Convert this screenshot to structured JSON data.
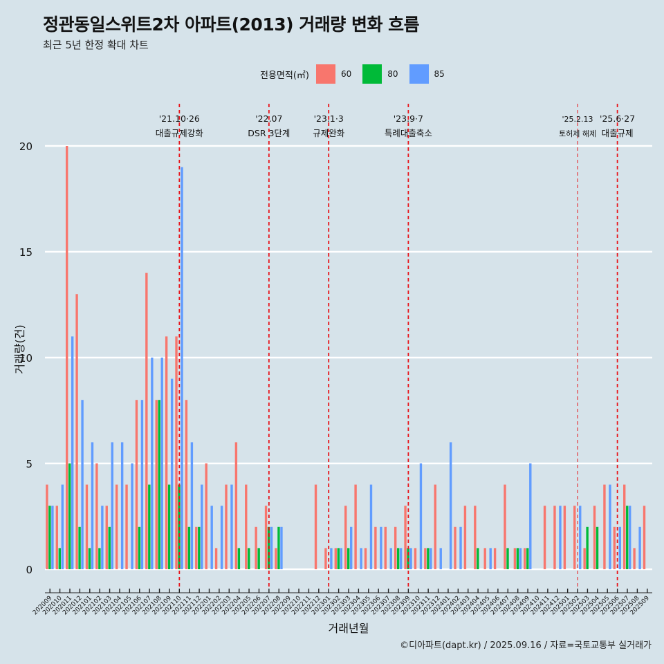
{
  "title": "정관동일스위트2차 아파트(2013) 거래량 변화 흐름",
  "subtitle": "최근 5년 한정 확대 차트",
  "caption": "©디아파트(dapt.kr) / 2025.09.16 / 자료=국토교통부 실거래가",
  "legend": {
    "title": "전용면적(㎡)",
    "items": [
      {
        "label": "60",
        "color": "#f8766d"
      },
      {
        "label": "80",
        "color": "#00ba38"
      },
      {
        "label": "85",
        "color": "#619cff"
      }
    ]
  },
  "chart_data": {
    "type": "bar",
    "xlabel": "거래년월",
    "ylabel": "거래량(건)",
    "ylim": [
      0,
      20
    ],
    "yticks": [
      0,
      5,
      10,
      15,
      20
    ],
    "grid": true,
    "legend_position": "top",
    "categories": [
      "202009",
      "202010",
      "202011",
      "202012",
      "202101",
      "202102",
      "202103",
      "202104",
      "202105",
      "202106",
      "202107",
      "202108",
      "202109",
      "202110",
      "202111",
      "202112",
      "202201",
      "202202",
      "202203",
      "202204",
      "202205",
      "202206",
      "202207",
      "202208",
      "202209",
      "202210",
      "202211",
      "202212",
      "202301",
      "202302",
      "202303",
      "202304",
      "202305",
      "202306",
      "202307",
      "202308",
      "202309",
      "202310",
      "202311",
      "202312",
      "202401",
      "202402",
      "202403",
      "202404",
      "202405",
      "202406",
      "202407",
      "202408",
      "202409",
      "202410",
      "202411",
      "202412",
      "202501",
      "202502",
      "202503",
      "202504",
      "202505",
      "202506",
      "202507",
      "202508",
      "202509"
    ],
    "series": [
      {
        "name": "60",
        "color": "#f8766d",
        "values": [
          4,
          3,
          20,
          13,
          4,
          5,
          3,
          4,
          4,
          8,
          14,
          8,
          11,
          11,
          8,
          2,
          5,
          1,
          4,
          6,
          4,
          2,
          3,
          1,
          0,
          0,
          0,
          4,
          1,
          1,
          3,
          4,
          1,
          2,
          2,
          2,
          3,
          1,
          1,
          4,
          0,
          2,
          3,
          3,
          1,
          1,
          4,
          1,
          1,
          0,
          3,
          3,
          3,
          3,
          1,
          3,
          4,
          2,
          4,
          1,
          3
        ]
      },
      {
        "name": "80",
        "color": "#00ba38",
        "values": [
          3,
          1,
          5,
          2,
          1,
          1,
          2,
          0,
          0,
          2,
          4,
          8,
          4,
          4,
          2,
          2,
          0,
          0,
          0,
          1,
          1,
          1,
          2,
          2,
          0,
          0,
          0,
          0,
          0,
          1,
          1,
          0,
          0,
          0,
          0,
          1,
          1,
          0,
          1,
          0,
          0,
          0,
          0,
          1,
          0,
          0,
          1,
          1,
          1,
          0,
          0,
          0,
          0,
          0,
          2,
          2,
          0,
          0,
          3,
          0,
          0
        ]
      },
      {
        "name": "85",
        "color": "#619cff",
        "values": [
          3,
          4,
          11,
          8,
          6,
          3,
          6,
          6,
          5,
          8,
          10,
          10,
          9,
          19,
          6,
          4,
          3,
          3,
          4,
          0,
          0,
          0,
          2,
          2,
          0,
          0,
          0,
          0,
          1,
          1,
          2,
          1,
          4,
          2,
          1,
          1,
          1,
          5,
          1,
          1,
          6,
          2,
          0,
          0,
          1,
          0,
          0,
          1,
          5,
          0,
          0,
          3,
          0,
          3,
          0,
          0,
          4,
          2,
          3,
          2,
          0
        ]
      }
    ],
    "events": [
      {
        "line1": "'21.10·26",
        "line2": "대출규제강화",
        "position": "202110"
      },
      {
        "line1": "'22.07",
        "line2": "DSR 3단계",
        "position": "202207"
      },
      {
        "line1": "'23.1·3",
        "line2": "규제완화",
        "position": "202301"
      },
      {
        "line1": "'23.9·7",
        "line2": "특례대출축소",
        "position": "202309"
      },
      {
        "line1": "'25.2.13",
        "line2": "토허제 해제",
        "position": "202502"
      },
      {
        "line1": "'25.6·27",
        "line2": "대출규제",
        "position": "202506"
      }
    ]
  }
}
